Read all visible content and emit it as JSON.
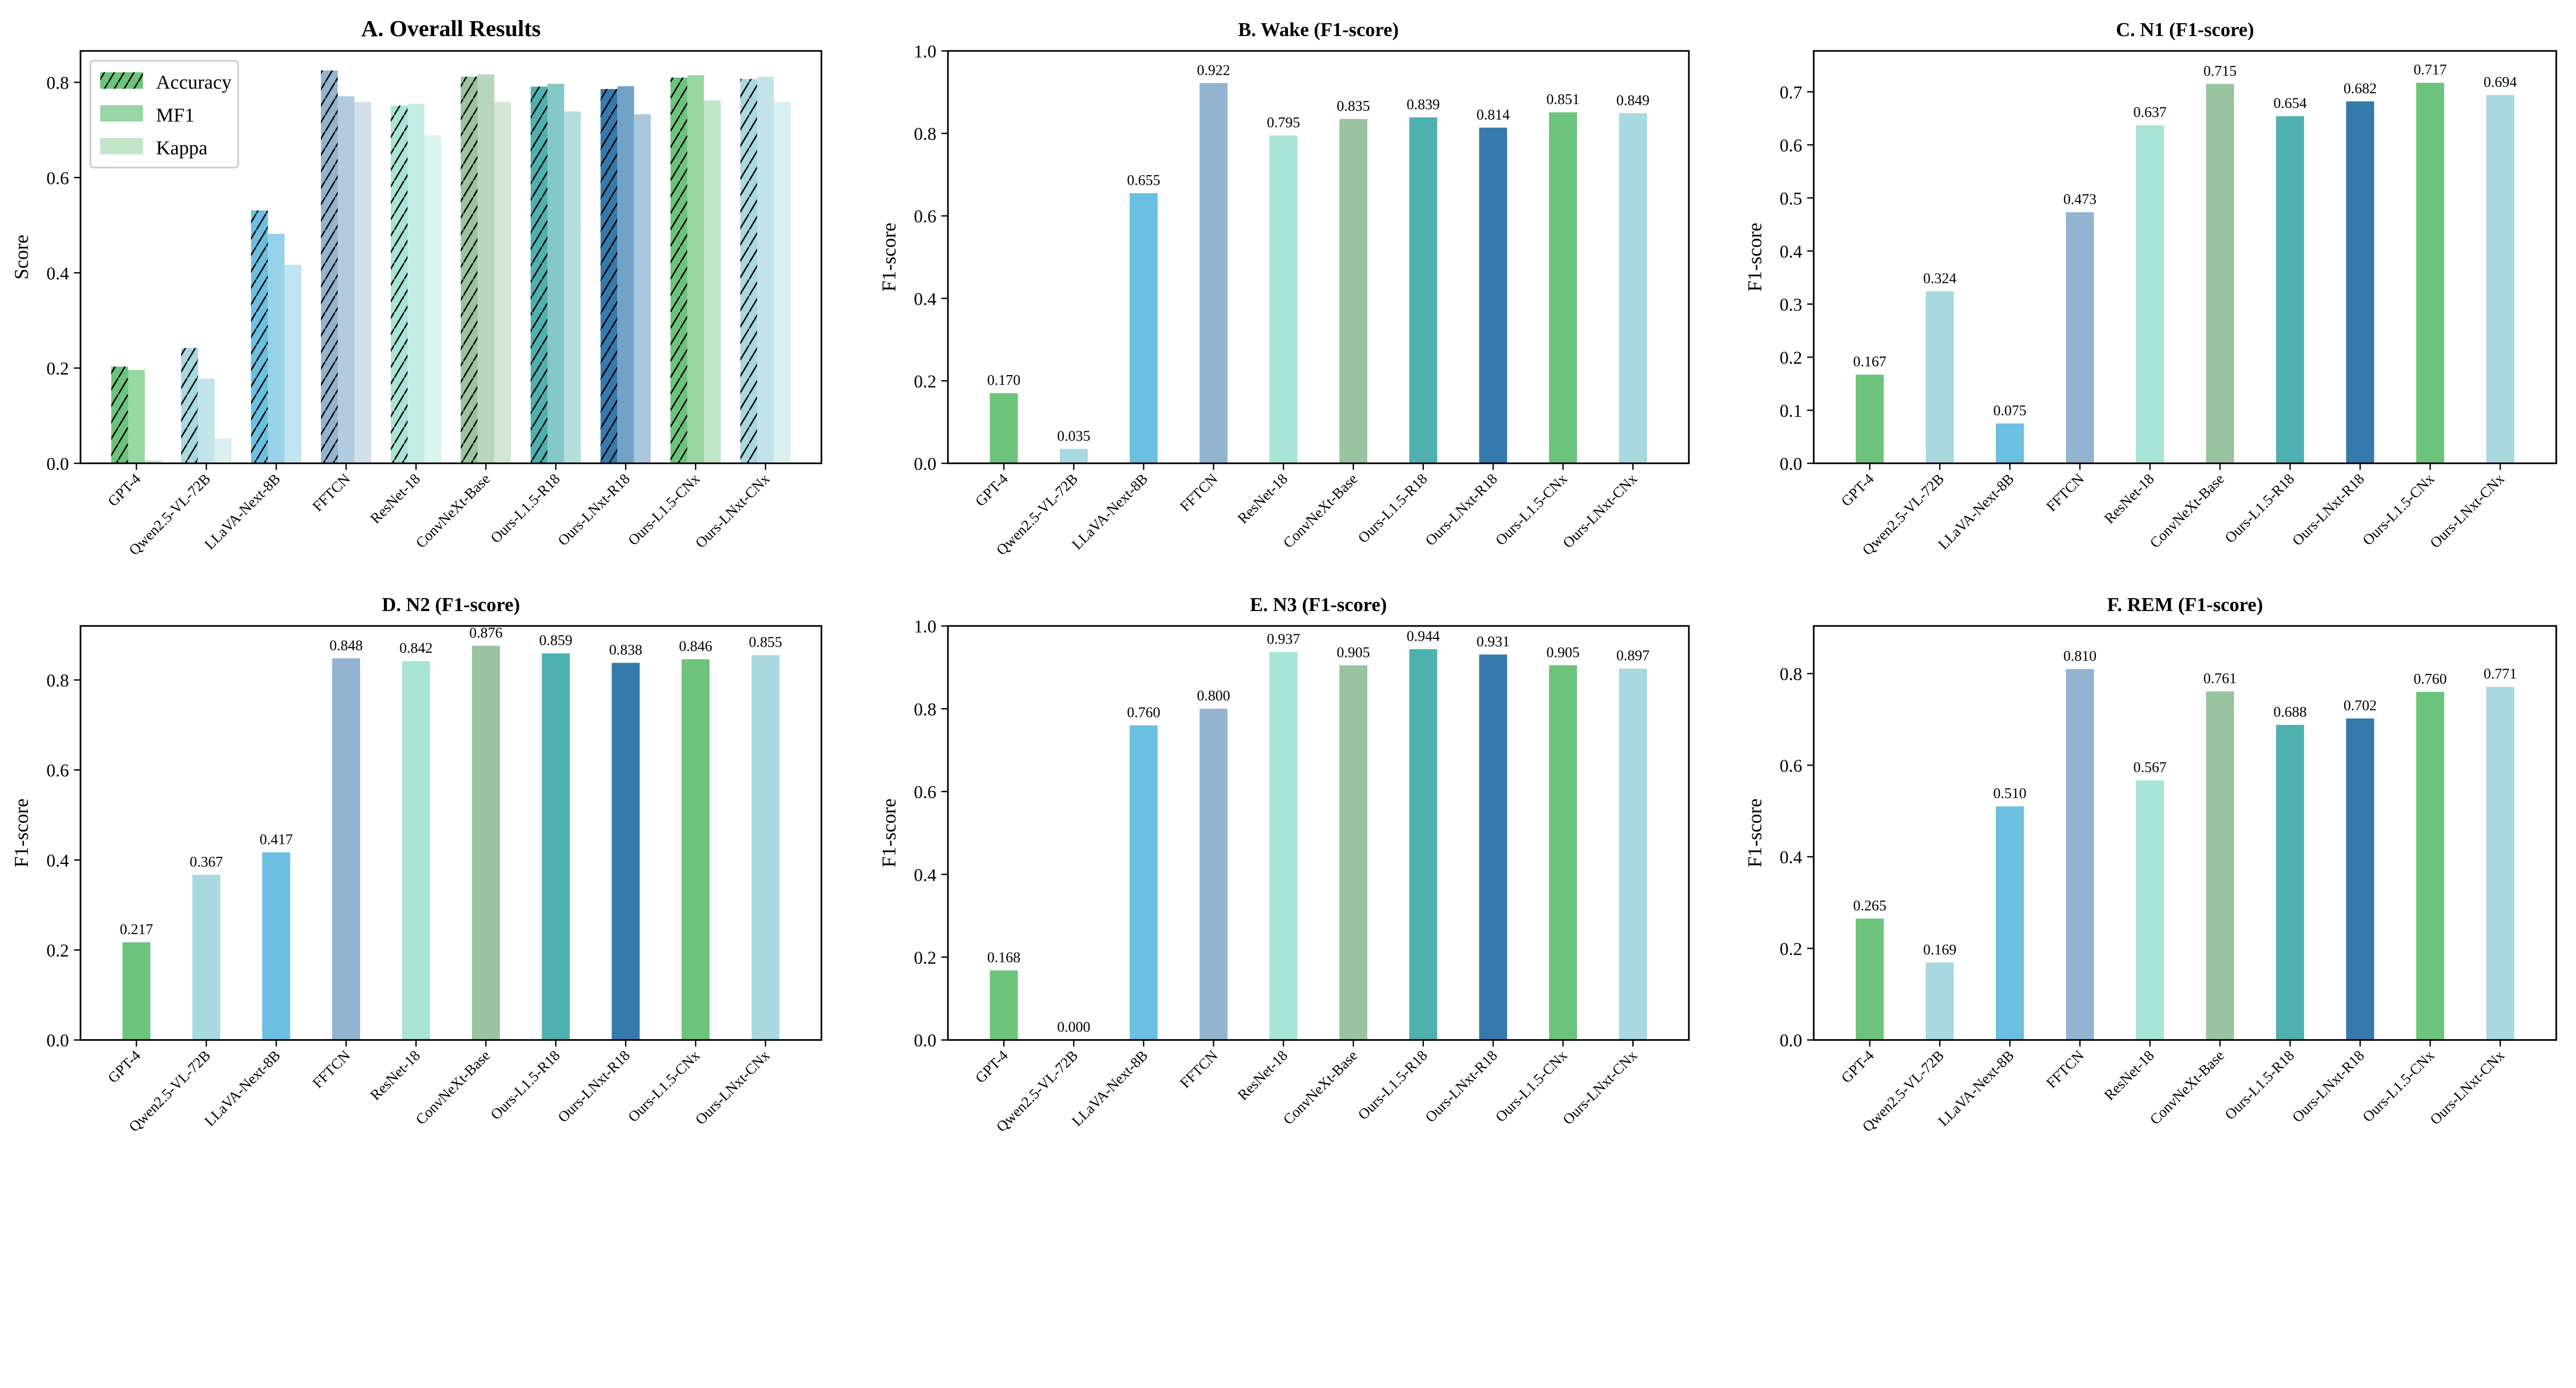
{
  "categories": [
    "GPT-4",
    "Qwen2.5-VL-72B",
    "LLaVA-Next-8B",
    "FFTCN",
    "ResNet-18",
    "ConvNeXt-Base",
    "Ours-L1.5-R18",
    "Ours-LNxt-R18",
    "Ours-L1.5-CNx",
    "Ours-LNxt-CNx"
  ],
  "colors": [
    "#6cc47c",
    "#a8d8e0",
    "#6bbfe0",
    "#92b4d0",
    "#a8e4d8",
    "#9ac4a0",
    "#4fb0b0",
    "#357aad",
    "#6cc47c",
    "#a8d8e0"
  ],
  "chart_data": [
    {
      "type": "bar",
      "title": "A. Overall Results",
      "ylabel": "Score",
      "ylim": [
        0,
        0.866
      ],
      "yticks": [
        "0.0",
        "0.2",
        "0.4",
        "0.6",
        "0.8"
      ],
      "legend": "top-left",
      "series": [
        {
          "name": "Accuracy",
          "hatch": true,
          "values": [
            0.203,
            0.242,
            0.531,
            0.825,
            0.751,
            0.812,
            0.791,
            0.786,
            0.81,
            0.807
          ]
        },
        {
          "name": "MF1",
          "values": [
            0.196,
            0.178,
            0.482,
            0.771,
            0.755,
            0.817,
            0.797,
            0.792,
            0.815,
            0.812
          ]
        },
        {
          "name": "Kappa",
          "values": [
            0.006,
            0.052,
            0.417,
            0.759,
            0.689,
            0.759,
            0.739,
            0.733,
            0.762,
            0.759
          ]
        }
      ]
    },
    {
      "type": "bar",
      "title": "B. Wake (F1-score)",
      "ylabel": "F1-score",
      "ylim": [
        0,
        1.0
      ],
      "yticks": [
        "0.0",
        "0.2",
        "0.4",
        "0.6",
        "0.8",
        "1.0"
      ],
      "values": [
        0.17,
        0.035,
        0.655,
        0.922,
        0.795,
        0.835,
        0.839,
        0.814,
        0.851,
        0.849
      ],
      "labels": [
        "0.170",
        "0.035",
        "0.655",
        "0.922",
        "0.795",
        "0.835",
        "0.839",
        "0.814",
        "0.851",
        "0.849"
      ]
    },
    {
      "type": "bar",
      "title": "C. N1 (F1-score)",
      "ylabel": "F1-score",
      "ylim": [
        0,
        0.777
      ],
      "yticks": [
        "0.0",
        "0.1",
        "0.2",
        "0.3",
        "0.4",
        "0.5",
        "0.6",
        "0.7"
      ],
      "values": [
        0.167,
        0.324,
        0.075,
        0.473,
        0.637,
        0.715,
        0.654,
        0.682,
        0.717,
        0.694
      ],
      "labels": [
        "0.167",
        "0.324",
        "0.075",
        "0.473",
        "0.637",
        "0.715",
        "0.654",
        "0.682",
        "0.717",
        "0.694"
      ]
    },
    {
      "type": "bar",
      "title": "D. N2 (F1-score)",
      "ylabel": "F1-score",
      "ylim": [
        0,
        0.92
      ],
      "yticks": [
        "0.0",
        "0.2",
        "0.4",
        "0.6",
        "0.8"
      ],
      "values": [
        0.217,
        0.367,
        0.417,
        0.848,
        0.842,
        0.876,
        0.859,
        0.838,
        0.846,
        0.855
      ],
      "labels": [
        "0.217",
        "0.367",
        "0.417",
        "0.848",
        "0.842",
        "0.876",
        "0.859",
        "0.838",
        "0.846",
        "0.855"
      ]
    },
    {
      "type": "bar",
      "title": "E. N3 (F1-score)",
      "ylabel": "F1-score",
      "ylim": [
        0,
        1.0
      ],
      "yticks": [
        "0.0",
        "0.2",
        "0.4",
        "0.6",
        "0.8",
        "1.0"
      ],
      "values": [
        0.168,
        0.0,
        0.76,
        0.8,
        0.937,
        0.905,
        0.944,
        0.931,
        0.905,
        0.897
      ],
      "labels": [
        "0.168",
        "0.000",
        "0.760",
        "0.800",
        "0.937",
        "0.905",
        "0.944",
        "0.931",
        "0.905",
        "0.897"
      ]
    },
    {
      "type": "bar",
      "title": "F. REM (F1-score)",
      "ylabel": "F1-score",
      "ylim": [
        0,
        0.904
      ],
      "yticks": [
        "0.0",
        "0.2",
        "0.4",
        "0.6",
        "0.8"
      ],
      "values": [
        0.265,
        0.169,
        0.51,
        0.81,
        0.567,
        0.761,
        0.688,
        0.702,
        0.76,
        0.771
      ],
      "labels": [
        "0.265",
        "0.169",
        "0.510",
        "0.810",
        "0.567",
        "0.761",
        "0.688",
        "0.702",
        "0.760",
        "0.771"
      ]
    }
  ]
}
